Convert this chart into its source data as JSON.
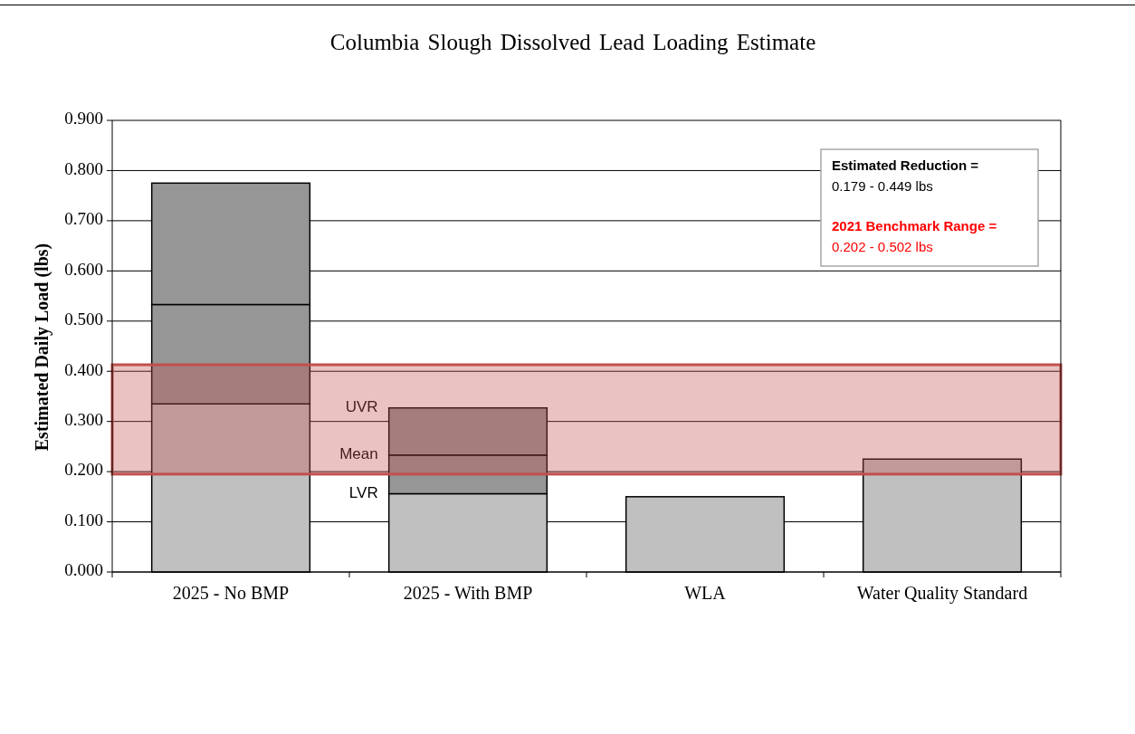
{
  "chart_data": {
    "type": "bar",
    "title": "Columbia Slough Dissolved Lead Loading Estimate",
    "ylabel": "Estimated Daily Load (lbs)",
    "categories": [
      "2025 - No BMP",
      "2025 - With BMP",
      "WLA",
      "Water Quality Standard"
    ],
    "stacked": true,
    "series": [
      {
        "color": "#c0c0c0",
        "values": [
          0.335,
          0.156,
          0.15,
          0.225
        ]
      },
      {
        "color": "#969696",
        "values": [
          0.198,
          0.077,
          null,
          null
        ]
      },
      {
        "color": "#969696",
        "values": [
          0.242,
          0.094,
          null,
          null
        ]
      }
    ],
    "ylim": [
      0,
      0.9
    ],
    "yticks": [
      {
        "value": 0,
        "label": "0.000"
      },
      {
        "value": 0.1,
        "label": "0.100"
      },
      {
        "value": 0.2,
        "label": "0.200"
      },
      {
        "value": 0.3,
        "label": "0.300"
      },
      {
        "value": 0.4,
        "label": "0.400"
      },
      {
        "value": 0.5,
        "label": "0.500"
      },
      {
        "value": 0.6,
        "label": "0.600"
      },
      {
        "value": 0.7,
        "label": "0.700"
      },
      {
        "value": 0.8,
        "label": "0.800"
      },
      {
        "value": 0.9,
        "label": "0.900"
      }
    ],
    "grid": "y",
    "bands": [
      {
        "axis": "y",
        "from": 0.195,
        "to": 0.413,
        "color": "#c0504d"
      }
    ],
    "annotations": [
      "UVR",
      "Mean",
      "LVR",
      "Estimated Reduction =",
      "0.179 - 0.449 lbs",
      "2021 Benchmark Range =",
      "0.202 - 0.502 lbs"
    ]
  }
}
